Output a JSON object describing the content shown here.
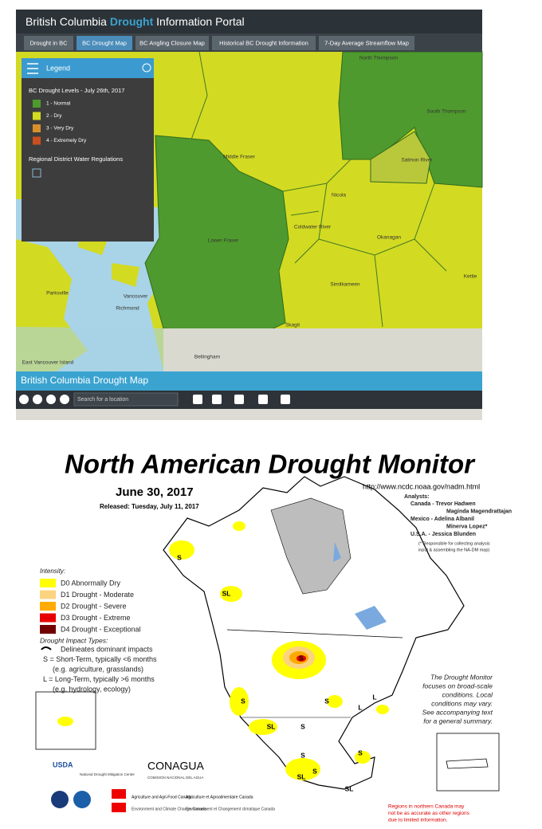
{
  "portal": {
    "title": {
      "prefix": "British Columbia",
      "highlight": "Drought",
      "suffix": "Information Portal"
    },
    "tabs": [
      "Drought in BC",
      "BC Drought Map",
      "BC Angling Closure Map",
      "Historical BC Drought Information",
      "7-Day Average Streamflow Map"
    ],
    "legend": {
      "title": "Legend",
      "heading": "BC Drought Levels - July 26th, 2017",
      "levels": [
        {
          "label": "1 - Normal",
          "color": "#4f9a2e"
        },
        {
          "label": "2 - Dry",
          "color": "#d3da22"
        },
        {
          "label": "3 - Very Dry",
          "color": "#d8902a"
        },
        {
          "label": "4 - Extremely Dry",
          "color": "#c9501e"
        }
      ],
      "regulations": "Regional District Water Regulations"
    },
    "map_labels": [
      "North Thompson",
      "South Thompson",
      "Middle Fraser",
      "Salmon River",
      "Nicola",
      "Coldwater River",
      "Okanagan",
      "Lower Fraser",
      "Similkameen",
      "Kettle",
      "Skagit",
      "Vancouver",
      "Richmond",
      "Parksville",
      "Bellingham",
      "East Vancouver Island"
    ],
    "map_title": "British Columbia Drought Map",
    "search_placeholder": "Search for a location"
  },
  "monitor": {
    "title": "North American Drought Monitor",
    "date": "June 30, 2017",
    "released": "Released: Tuesday, July 11, 2017",
    "url": "http://www.ncdc.noaa.gov/nadm.html",
    "analysts": {
      "heading": "Analysts:",
      "lines": [
        "Canada - Trevor Hadwen",
        "Maginda Magendrattajan",
        "Mexico - Adelina Albanil",
        "Minerva Lopez*",
        "U.S.A. - Jessica Blunden"
      ],
      "note": [
        "(* Responsible for collecting analysis",
        "input & assembling the NA-DM map)"
      ]
    },
    "intensity": {
      "heading": "Intensity:",
      "levels": [
        {
          "label": "D0 Abnormally Dry",
          "color": "#ffff00"
        },
        {
          "label": "D1 Drought - Moderate",
          "color": "#fcd37f"
        },
        {
          "label": "D2 Drought - Severe",
          "color": "#ffaa00"
        },
        {
          "label": "D3 Drought - Extreme",
          "color": "#e60000"
        },
        {
          "label": "D4 Drought - Exceptional",
          "color": "#730000"
        }
      ]
    },
    "impact": {
      "heading": "Drought Impact Types:",
      "lines": [
        "Delineates dominant impacts",
        "S = Short-Term, typically <6 months",
        "(e.g. agriculture, grasslands)",
        "L = Long-Term, typically >6 months",
        "(e.g. hydrology, ecology)"
      ]
    },
    "disclaimer": [
      "The Drought Monitor",
      "focuses on broad-scale",
      "conditions. Local",
      "conditions may vary.",
      "See accompanying text",
      "for a general summary."
    ],
    "regions_note": [
      "Regions in northern Canada may",
      "not be as accurate as other regions",
      "due to limited information."
    ],
    "logos": [
      "USDA",
      "National Drought Mitigation Center",
      "CONAGUA",
      "COMISION NACIONAL DEL AGUA",
      "Agriculture and Agri-Food Canada",
      "Agriculture et Agroalimentaire Canada",
      "Environment and Climate Change Canada",
      "Environnement et Changement climatique Canada"
    ],
    "map_marks": [
      "S",
      "SL",
      "S",
      "S",
      "SL",
      "S",
      "S",
      "L",
      "S",
      "S",
      "SL",
      "S",
      "L",
      "SL"
    ]
  }
}
